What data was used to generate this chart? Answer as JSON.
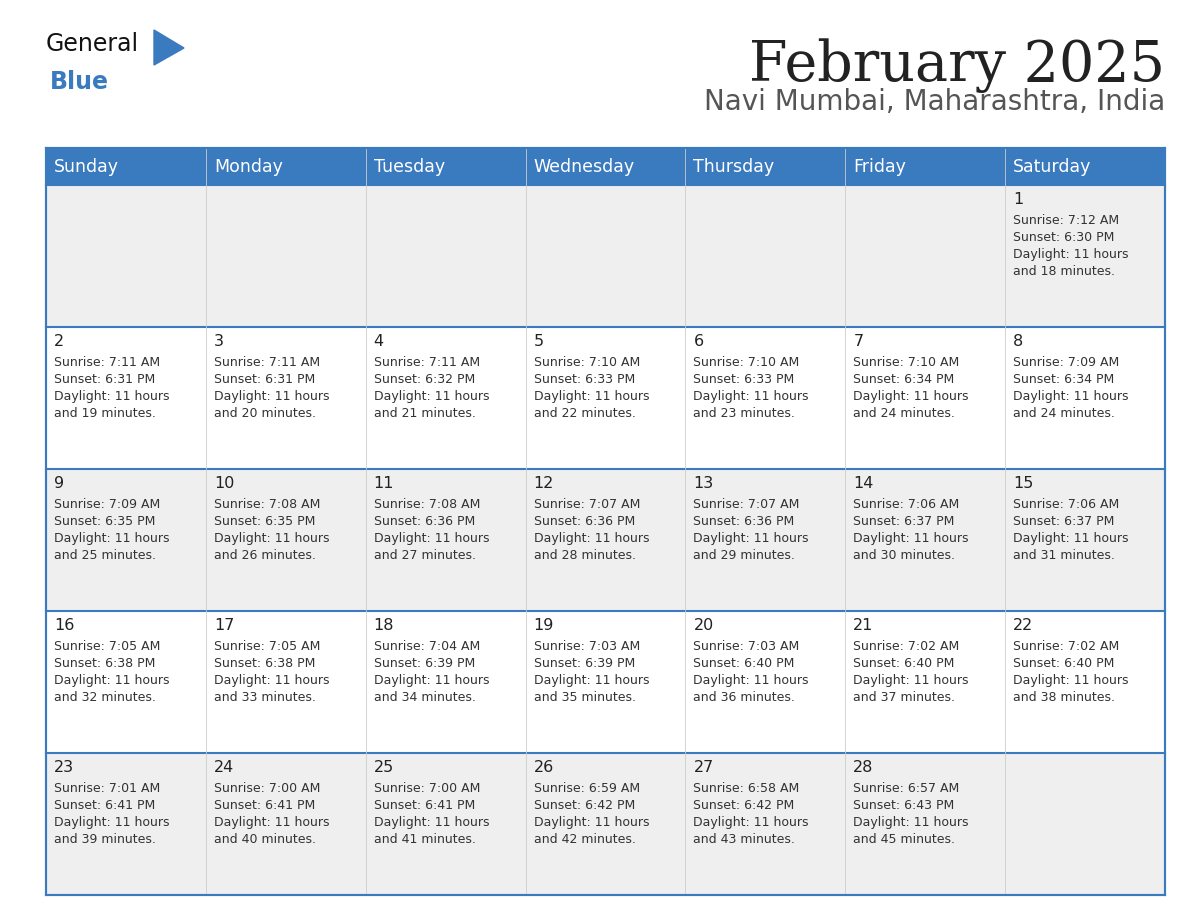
{
  "title": "February 2025",
  "subtitle": "Navi Mumbai, Maharashtra, India",
  "header_bg": "#3a7abf",
  "header_text": "#ffffff",
  "row_bg_even": "#efefef",
  "row_bg_odd": "#ffffff",
  "border_color": "#3a7abf",
  "text_color": "#333333",
  "day_num_color": "#222222",
  "day_headers": [
    "Sunday",
    "Monday",
    "Tuesday",
    "Wednesday",
    "Thursday",
    "Friday",
    "Saturday"
  ],
  "title_color": "#222222",
  "subtitle_color": "#555555",
  "logo_general_color": "#111111",
  "logo_blue_color": "#3a7abf",
  "logo_triangle_color": "#3a7abf",
  "days": [
    {
      "day": 1,
      "col": 6,
      "row": 0,
      "sunrise": "7:12 AM",
      "sunset": "6:30 PM",
      "daylight_h": "11 hours",
      "daylight_m": "18 minutes."
    },
    {
      "day": 2,
      "col": 0,
      "row": 1,
      "sunrise": "7:11 AM",
      "sunset": "6:31 PM",
      "daylight_h": "11 hours",
      "daylight_m": "19 minutes."
    },
    {
      "day": 3,
      "col": 1,
      "row": 1,
      "sunrise": "7:11 AM",
      "sunset": "6:31 PM",
      "daylight_h": "11 hours",
      "daylight_m": "20 minutes."
    },
    {
      "day": 4,
      "col": 2,
      "row": 1,
      "sunrise": "7:11 AM",
      "sunset": "6:32 PM",
      "daylight_h": "11 hours",
      "daylight_m": "21 minutes."
    },
    {
      "day": 5,
      "col": 3,
      "row": 1,
      "sunrise": "7:10 AM",
      "sunset": "6:33 PM",
      "daylight_h": "11 hours",
      "daylight_m": "22 minutes."
    },
    {
      "day": 6,
      "col": 4,
      "row": 1,
      "sunrise": "7:10 AM",
      "sunset": "6:33 PM",
      "daylight_h": "11 hours",
      "daylight_m": "23 minutes."
    },
    {
      "day": 7,
      "col": 5,
      "row": 1,
      "sunrise": "7:10 AM",
      "sunset": "6:34 PM",
      "daylight_h": "11 hours",
      "daylight_m": "24 minutes."
    },
    {
      "day": 8,
      "col": 6,
      "row": 1,
      "sunrise": "7:09 AM",
      "sunset": "6:34 PM",
      "daylight_h": "11 hours",
      "daylight_m": "24 minutes."
    },
    {
      "day": 9,
      "col": 0,
      "row": 2,
      "sunrise": "7:09 AM",
      "sunset": "6:35 PM",
      "daylight_h": "11 hours",
      "daylight_m": "25 minutes."
    },
    {
      "day": 10,
      "col": 1,
      "row": 2,
      "sunrise": "7:08 AM",
      "sunset": "6:35 PM",
      "daylight_h": "11 hours",
      "daylight_m": "26 minutes."
    },
    {
      "day": 11,
      "col": 2,
      "row": 2,
      "sunrise": "7:08 AM",
      "sunset": "6:36 PM",
      "daylight_h": "11 hours",
      "daylight_m": "27 minutes."
    },
    {
      "day": 12,
      "col": 3,
      "row": 2,
      "sunrise": "7:07 AM",
      "sunset": "6:36 PM",
      "daylight_h": "11 hours",
      "daylight_m": "28 minutes."
    },
    {
      "day": 13,
      "col": 4,
      "row": 2,
      "sunrise": "7:07 AM",
      "sunset": "6:36 PM",
      "daylight_h": "11 hours",
      "daylight_m": "29 minutes."
    },
    {
      "day": 14,
      "col": 5,
      "row": 2,
      "sunrise": "7:06 AM",
      "sunset": "6:37 PM",
      "daylight_h": "11 hours",
      "daylight_m": "30 minutes."
    },
    {
      "day": 15,
      "col": 6,
      "row": 2,
      "sunrise": "7:06 AM",
      "sunset": "6:37 PM",
      "daylight_h": "11 hours",
      "daylight_m": "31 minutes."
    },
    {
      "day": 16,
      "col": 0,
      "row": 3,
      "sunrise": "7:05 AM",
      "sunset": "6:38 PM",
      "daylight_h": "11 hours",
      "daylight_m": "32 minutes."
    },
    {
      "day": 17,
      "col": 1,
      "row": 3,
      "sunrise": "7:05 AM",
      "sunset": "6:38 PM",
      "daylight_h": "11 hours",
      "daylight_m": "33 minutes."
    },
    {
      "day": 18,
      "col": 2,
      "row": 3,
      "sunrise": "7:04 AM",
      "sunset": "6:39 PM",
      "daylight_h": "11 hours",
      "daylight_m": "34 minutes."
    },
    {
      "day": 19,
      "col": 3,
      "row": 3,
      "sunrise": "7:03 AM",
      "sunset": "6:39 PM",
      "daylight_h": "11 hours",
      "daylight_m": "35 minutes."
    },
    {
      "day": 20,
      "col": 4,
      "row": 3,
      "sunrise": "7:03 AM",
      "sunset": "6:40 PM",
      "daylight_h": "11 hours",
      "daylight_m": "36 minutes."
    },
    {
      "day": 21,
      "col": 5,
      "row": 3,
      "sunrise": "7:02 AM",
      "sunset": "6:40 PM",
      "daylight_h": "11 hours",
      "daylight_m": "37 minutes."
    },
    {
      "day": 22,
      "col": 6,
      "row": 3,
      "sunrise": "7:02 AM",
      "sunset": "6:40 PM",
      "daylight_h": "11 hours",
      "daylight_m": "38 minutes."
    },
    {
      "day": 23,
      "col": 0,
      "row": 4,
      "sunrise": "7:01 AM",
      "sunset": "6:41 PM",
      "daylight_h": "11 hours",
      "daylight_m": "39 minutes."
    },
    {
      "day": 24,
      "col": 1,
      "row": 4,
      "sunrise": "7:00 AM",
      "sunset": "6:41 PM",
      "daylight_h": "11 hours",
      "daylight_m": "40 minutes."
    },
    {
      "day": 25,
      "col": 2,
      "row": 4,
      "sunrise": "7:00 AM",
      "sunset": "6:41 PM",
      "daylight_h": "11 hours",
      "daylight_m": "41 minutes."
    },
    {
      "day": 26,
      "col": 3,
      "row": 4,
      "sunrise": "6:59 AM",
      "sunset": "6:42 PM",
      "daylight_h": "11 hours",
      "daylight_m": "42 minutes."
    },
    {
      "day": 27,
      "col": 4,
      "row": 4,
      "sunrise": "6:58 AM",
      "sunset": "6:42 PM",
      "daylight_h": "11 hours",
      "daylight_m": "43 minutes."
    },
    {
      "day": 28,
      "col": 5,
      "row": 4,
      "sunrise": "6:57 AM",
      "sunset": "6:43 PM",
      "daylight_h": "11 hours",
      "daylight_m": "45 minutes."
    }
  ]
}
